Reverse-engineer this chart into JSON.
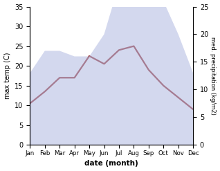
{
  "months": [
    "Jan",
    "Feb",
    "Mar",
    "Apr",
    "May",
    "Jun",
    "Jul",
    "Aug",
    "Sep",
    "Oct",
    "Nov",
    "Dec"
  ],
  "max_temp": [
    10.5,
    13.5,
    17.0,
    17.0,
    22.5,
    20.5,
    24.0,
    25.0,
    19.0,
    15.0,
    12.0,
    9.0
  ],
  "precipitation": [
    13.0,
    17.0,
    17.0,
    16.0,
    16.0,
    20.0,
    29.0,
    35.0,
    33.0,
    26.0,
    20.0,
    13.0
  ],
  "temp_ylim": [
    0,
    35
  ],
  "precip_ylim": [
    0,
    25
  ],
  "temp_yticks": [
    0,
    5,
    10,
    15,
    20,
    25,
    30,
    35
  ],
  "precip_yticks": [
    0,
    5,
    10,
    15,
    20,
    25
  ],
  "fill_color": "#b0b8e0",
  "fill_alpha": 0.55,
  "line_color": "#993333",
  "line_width": 1.6,
  "xlabel": "date (month)",
  "ylabel_left": "max temp (C)",
  "ylabel_right": "med. precipitation (kg/m2)",
  "bg_color": "#ffffff"
}
